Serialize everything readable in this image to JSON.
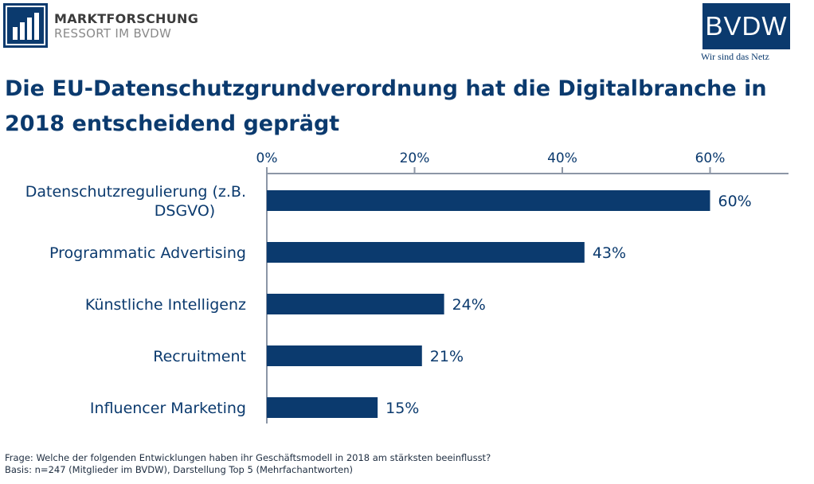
{
  "header": {
    "left_logo_line1": "MARKTFORSCHUNG",
    "left_logo_line2": "RESSORT IM BVDW",
    "right_logo_text": "BVDW",
    "right_logo_tagline": "Wir sind das Netz"
  },
  "title": "Die EU-Datenschutzgrundverordnung hat die Digitalbranche in 2018 entscheidend geprägt",
  "footer": {
    "question": "Frage: Welche der folgenden Entwicklungen haben ihr Geschäftsmodell in 2018 am stärksten beeinflusst?",
    "basis": "Basis: n=247 (Mitglieder im BVDW), Darstellung Top 5 (Mehrfachantworten)"
  },
  "colors": {
    "bar": "#0b3a6e",
    "text": "#0b3a6e",
    "axis": "#8c96a6"
  },
  "chart_data": {
    "type": "bar",
    "orientation": "horizontal",
    "categories": [
      "Datenschutzregulierung (z.B. DSGVO)",
      "Programmatic Advertising",
      "Künstliche Intelligenz",
      "Recruitment",
      "Influencer Marketing"
    ],
    "category_lines": [
      [
        "Datenschutzregulierung (z.B.",
        "DSGVO)"
      ],
      [
        "Programmatic Advertising"
      ],
      [
        "Künstliche Intelligenz"
      ],
      [
        "Recruitment"
      ],
      [
        "Influencer Marketing"
      ]
    ],
    "values": [
      60,
      43,
      24,
      21,
      15
    ],
    "value_labels": [
      "60%",
      "43%",
      "24%",
      "21%",
      "15%"
    ],
    "xlim": [
      0,
      70
    ],
    "ticks": [
      0,
      20,
      40,
      60
    ],
    "tick_labels": [
      "0%",
      "20%",
      "40%",
      "60%"
    ],
    "axis_position": "top",
    "grid": false,
    "legend": "none"
  }
}
